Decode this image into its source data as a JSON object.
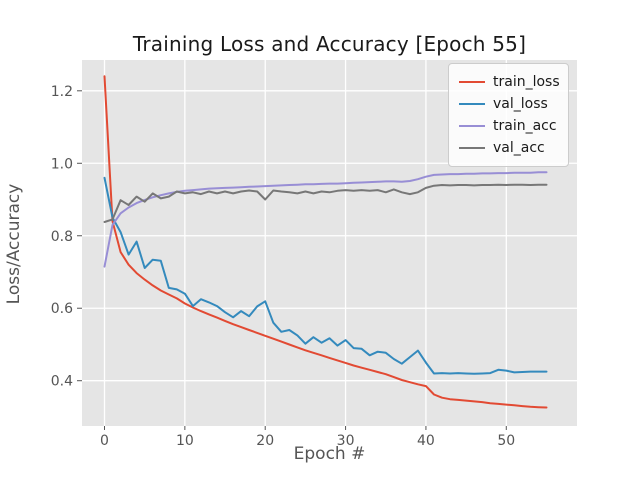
{
  "figure": {
    "title": "Training Loss and Accuracy [Epoch 55]"
  },
  "chart_data": {
    "type": "line",
    "title": "Training Loss and Accuracy [Epoch 55]",
    "xlabel": "Epoch #",
    "ylabel": "Loss/Accuracy",
    "xlim": [
      -2.8,
      58.8
    ],
    "ylim": [
      0.275,
      1.285
    ],
    "xticks": [
      0,
      10,
      20,
      30,
      40,
      50
    ],
    "yticks": [
      0.4,
      0.6,
      0.8,
      1.0,
      1.2
    ],
    "grid": true,
    "legend_position": "upper right",
    "style": {
      "plot_bg": "#E5E5E5",
      "grid_color": "#FFFFFF",
      "tick_color": "#555555",
      "text_color": "#555555",
      "title_color": "#1a1a1a",
      "legend_bg": "#FDFDFD",
      "legend_border": "#CCCCCC",
      "line_width": 2
    },
    "series": [
      {
        "name": "train_loss",
        "color": "#E24A33",
        "values": [
          1.24,
          0.84,
          0.755,
          0.72,
          0.697,
          0.679,
          0.663,
          0.649,
          0.638,
          0.627,
          0.613,
          0.602,
          0.592,
          0.583,
          0.574,
          0.565,
          0.556,
          0.548,
          0.54,
          0.532,
          0.524,
          0.516,
          0.508,
          0.5,
          0.492,
          0.484,
          0.477,
          0.47,
          0.463,
          0.456,
          0.449,
          0.442,
          0.436,
          0.43,
          0.424,
          0.418,
          0.41,
          0.402,
          0.396,
          0.39,
          0.385,
          0.362,
          0.353,
          0.349,
          0.347,
          0.345,
          0.343,
          0.341,
          0.338,
          0.336,
          0.334,
          0.332,
          0.33,
          0.328,
          0.327,
          0.326
        ]
      },
      {
        "name": "val_loss",
        "color": "#348ABD",
        "values": [
          0.96,
          0.85,
          0.81,
          0.748,
          0.784,
          0.711,
          0.734,
          0.731,
          0.656,
          0.652,
          0.64,
          0.606,
          0.625,
          0.616,
          0.606,
          0.589,
          0.575,
          0.592,
          0.578,
          0.605,
          0.619,
          0.56,
          0.535,
          0.54,
          0.525,
          0.502,
          0.52,
          0.505,
          0.517,
          0.497,
          0.512,
          0.49,
          0.488,
          0.47,
          0.48,
          0.477,
          0.46,
          0.447,
          0.465,
          0.483,
          0.45,
          0.42,
          0.421,
          0.42,
          0.421,
          0.42,
          0.419,
          0.42,
          0.421,
          0.43,
          0.428,
          0.423,
          0.424,
          0.425,
          0.425,
          0.425
        ]
      },
      {
        "name": "train_acc",
        "color": "#988ED5",
        "values": [
          0.715,
          0.83,
          0.862,
          0.878,
          0.89,
          0.899,
          0.906,
          0.912,
          0.917,
          0.921,
          0.924,
          0.926,
          0.928,
          0.93,
          0.931,
          0.932,
          0.933,
          0.934,
          0.935,
          0.936,
          0.937,
          0.938,
          0.939,
          0.94,
          0.941,
          0.942,
          0.942,
          0.943,
          0.944,
          0.944,
          0.945,
          0.946,
          0.947,
          0.948,
          0.949,
          0.95,
          0.95,
          0.949,
          0.951,
          0.956,
          0.963,
          0.968,
          0.969,
          0.97,
          0.97,
          0.971,
          0.971,
          0.972,
          0.972,
          0.973,
          0.973,
          0.974,
          0.974,
          0.974,
          0.975,
          0.975
        ]
      },
      {
        "name": "val_acc",
        "color": "#777777",
        "values": [
          0.838,
          0.845,
          0.898,
          0.885,
          0.908,
          0.894,
          0.917,
          0.903,
          0.908,
          0.922,
          0.917,
          0.92,
          0.915,
          0.922,
          0.917,
          0.922,
          0.917,
          0.922,
          0.925,
          0.922,
          0.9,
          0.925,
          0.922,
          0.92,
          0.917,
          0.922,
          0.917,
          0.922,
          0.92,
          0.924,
          0.926,
          0.924,
          0.926,
          0.924,
          0.926,
          0.92,
          0.928,
          0.92,
          0.915,
          0.92,
          0.932,
          0.938,
          0.94,
          0.939,
          0.94,
          0.94,
          0.939,
          0.94,
          0.94,
          0.941,
          0.94,
          0.941,
          0.941,
          0.94,
          0.941,
          0.941
        ]
      }
    ]
  }
}
